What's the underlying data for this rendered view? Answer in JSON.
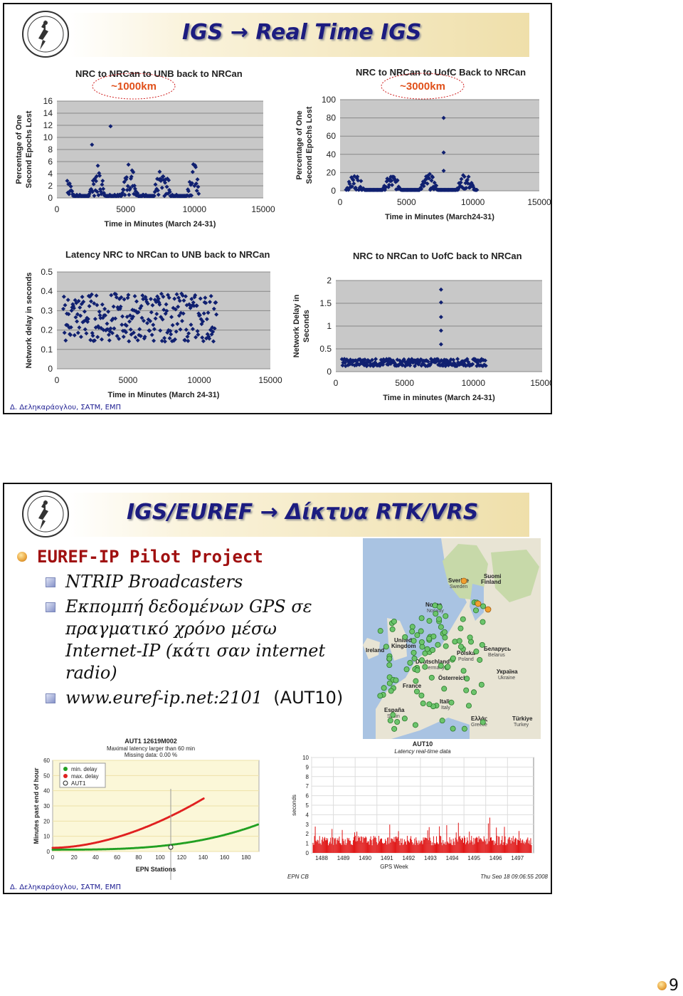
{
  "slide1": {
    "title": "IGS → Real Time IGS",
    "footer": "Δ. Δεληκαράογλου, ΣΑΤΜ, ΕΜΠ",
    "charts": [
      {
        "title": "NRC to NRCan to UNB back to NRCan",
        "distance": "~1000km",
        "ylabel1": "Percentage of One",
        "ylabel2": "Second Epochs Lost",
        "xlabel": "Time in Minutes (March 24-31)",
        "yticks": [
          "0",
          "2",
          "4",
          "6",
          "8",
          "10",
          "12",
          "14",
          "16"
        ],
        "xticks": [
          "0",
          "5000",
          "10000",
          "15000"
        ]
      },
      {
        "title": "NRC to NRCan to UofC Back to NRCan",
        "distance": "~3000km",
        "ylabel1": "Percentage of One",
        "ylabel2": "Second Epochs Lost",
        "xlabel": "Time in Minutes (March24-31)",
        "yticks": [
          "0",
          "20",
          "40",
          "60",
          "80",
          "100"
        ],
        "xticks": [
          "0",
          "5000",
          "10000",
          "15000"
        ]
      },
      {
        "title": "Latency NRC to NRCan to UNB back to NRCan",
        "ylabel1": "Network delay in seconds",
        "xlabel": "Time in Minutes (March 24-31)",
        "yticks": [
          "0",
          "0.1",
          "0.2",
          "0.3",
          "0.4",
          "0.5"
        ],
        "xticks": [
          "0",
          "5000",
          "10000",
          "15000"
        ]
      },
      {
        "title": "NRC to NRCan to UofC back to NRCan",
        "ylabel1": "Network Delay in",
        "ylabel2": "Seconds",
        "xlabel": "Time in minutes (March 24-31)",
        "yticks": [
          "0",
          "0.5",
          "1",
          "1.5",
          "2"
        ],
        "xticks": [
          "0",
          "5000",
          "10000",
          "15000"
        ]
      }
    ]
  },
  "slide2": {
    "title": "IGS/EUREF → Δίκτυα RTK/VRS",
    "footer": "Δ. Δεληκαράογλου, ΣΑΤΜ, ΕΜΠ",
    "bullet_main": "EUREF-IP Pilot Project",
    "sub1": "NTRIP Broadcasters",
    "sub2_l1": "Εκπομπή δεδομένων GPS σε",
    "sub2_l2": "πραγματικό χρόνο μέσω",
    "sub2_l3": "Internet-IP (κάτι σαν internet",
    "sub2_l4": "radio)",
    "sub3_url": "www.euref-ip.net:2101",
    "sub3_code": "(AUT10)",
    "map_labels": [
      "Sverige",
      "Sweden",
      "Suomi",
      "Finland",
      "Norge",
      "Norway",
      "United",
      "Kingdom",
      "Ireland",
      "Polska",
      "Poland",
      "Deutschland",
      "Germany",
      "Беларусь",
      "Belarus",
      "Україна",
      "Ukraine",
      "France",
      "Österreich",
      "Italia",
      "Italy",
      "España",
      "Spain",
      "Ελλάς",
      "Greece",
      "Türkiye",
      "Turkey"
    ],
    "chart_left": {
      "title": "AUT1 12619M002",
      "sub1": "Maximal latency larger than 60 min",
      "sub2": "Missing data: 0.00 %",
      "legend": [
        "min. delay",
        "max. delay",
        "AUT1"
      ],
      "ylabel": "Minutes past end of hour",
      "xlabel": "EPN Stations",
      "yticks": [
        "0",
        "10",
        "20",
        "30",
        "40",
        "50",
        "60"
      ],
      "xticks": [
        "0",
        "20",
        "40",
        "60",
        "80",
        "100",
        "120",
        "140",
        "160",
        "180"
      ]
    },
    "chart_right": {
      "title": "AUT10",
      "subtitle": "Latency real-time data",
      "ylabel": "seconds",
      "xlabel": "GPS Week",
      "yticks": [
        "0",
        "1",
        "2",
        "3",
        "4",
        "5",
        "6",
        "7",
        "8",
        "9",
        "10"
      ],
      "xticks": [
        "1488",
        "1489",
        "1490",
        "1491",
        "1492",
        "1493",
        "1494",
        "1495",
        "1496",
        "1497"
      ],
      "footer_left": "EPN CB",
      "footer_right": "Thu Sep 18 09:06:55 2008"
    }
  },
  "page_number": "9"
}
